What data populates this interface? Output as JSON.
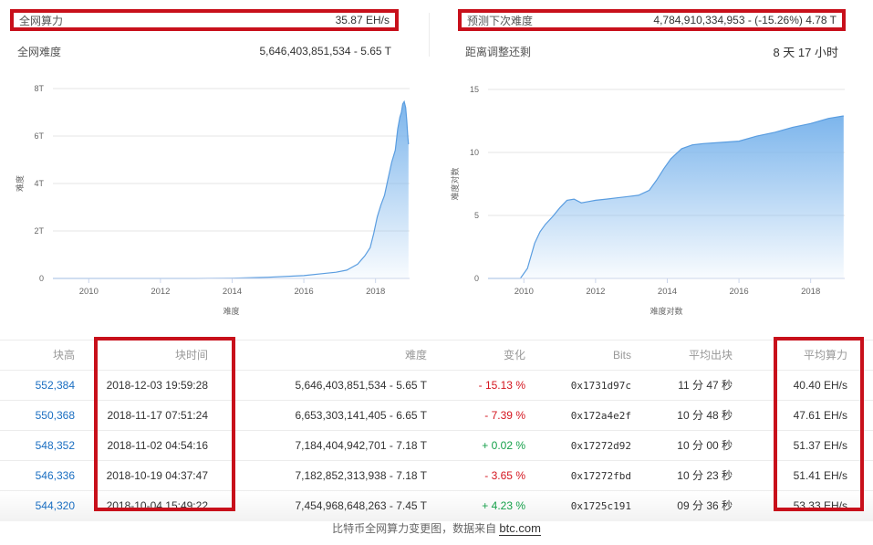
{
  "stats": {
    "hashrate": {
      "label": "全网算力",
      "value": "35.87 EH/s"
    },
    "difficulty": {
      "label": "全网难度",
      "value": "5,646,403,851,534 - 5.65 T"
    },
    "predicted": {
      "label": "预测下次难度",
      "value": "4,784,910,334,953 - (-15.26%) 4.78 T"
    },
    "remaining": {
      "label": "距离调整还剩",
      "value": "8 天 17 小时"
    }
  },
  "chart_data": [
    {
      "type": "area",
      "title": "",
      "xlabel": "难度",
      "ylabel": "难度",
      "xlim": [
        2009,
        2018.95
      ],
      "ylim": [
        0,
        8
      ],
      "x_ticks": [
        2010,
        2012,
        2014,
        2016,
        2018
      ],
      "y_ticks": [
        {
          "value": 0,
          "label": "0"
        },
        {
          "value": 2,
          "label": "2T"
        },
        {
          "value": 4,
          "label": "4T"
        },
        {
          "value": 6,
          "label": "6T"
        },
        {
          "value": 8,
          "label": "8T"
        }
      ],
      "grid": true,
      "color": "#7cb5ec",
      "series": [
        {
          "x": [
            2009.0,
            2013.0,
            2014.0,
            2015.0,
            2016.0,
            2016.5,
            2016.9,
            2017.2,
            2017.5,
            2017.7,
            2017.85,
            2017.95,
            2018.05,
            2018.15,
            2018.25,
            2018.35,
            2018.45,
            2018.55,
            2018.62,
            2018.68,
            2018.72,
            2018.76,
            2018.8,
            2018.84,
            2018.87,
            2018.9,
            2018.92
          ],
          "y": [
            0,
            0,
            0.01,
            0.05,
            0.12,
            0.2,
            0.26,
            0.35,
            0.6,
            0.95,
            1.3,
            1.9,
            2.6,
            3.1,
            3.5,
            4.2,
            4.9,
            5.4,
            6.3,
            6.8,
            7.0,
            7.35,
            7.45,
            7.2,
            6.65,
            6.0,
            5.65
          ]
        }
      ]
    },
    {
      "type": "area",
      "title": "",
      "xlabel": "难度对数",
      "ylabel": "难度对数",
      "xlim": [
        2009,
        2018.95
      ],
      "ylim": [
        0,
        15
      ],
      "x_ticks": [
        2010,
        2012,
        2014,
        2016,
        2018
      ],
      "y_ticks": [
        {
          "value": 0,
          "label": "0"
        },
        {
          "value": 5,
          "label": "5"
        },
        {
          "value": 10,
          "label": "10"
        },
        {
          "value": 15,
          "label": "15"
        }
      ],
      "grid": true,
      "color": "#7cb5ec",
      "series": [
        {
          "x": [
            2009.0,
            2009.9,
            2010.1,
            2010.3,
            2010.45,
            2010.6,
            2010.8,
            2011.0,
            2011.2,
            2011.4,
            2011.6,
            2011.8,
            2012.0,
            2012.3,
            2012.6,
            2012.9,
            2013.2,
            2013.5,
            2013.7,
            2013.9,
            2014.1,
            2014.4,
            2014.7,
            2015.0,
            2015.5,
            2016.0,
            2016.5,
            2017.0,
            2017.5,
            2018.0,
            2018.5,
            2018.92
          ],
          "y": [
            0,
            0,
            0.8,
            2.8,
            3.7,
            4.3,
            4.9,
            5.6,
            6.2,
            6.3,
            6.0,
            6.1,
            6.2,
            6.3,
            6.4,
            6.5,
            6.6,
            7.0,
            7.8,
            8.7,
            9.5,
            10.3,
            10.6,
            10.7,
            10.8,
            10.9,
            11.3,
            11.6,
            12.0,
            12.3,
            12.7,
            12.9
          ]
        }
      ]
    }
  ],
  "table": {
    "headers": {
      "height": "块高",
      "time": "块时间",
      "difficulty": "难度",
      "change": "变化",
      "bits": "Bits",
      "avg": "平均出块",
      "hashrate": "平均算力"
    },
    "rows": [
      {
        "height": "552,384",
        "time": "2018-12-03 19:59:28",
        "difficulty": "5,646,403,851,534 - 5.65 T",
        "change": "- 15.13 %",
        "direction": "down",
        "bits": "0x1731d97c",
        "avg": "11 分 47 秒",
        "hashrate": "40.40 EH/s"
      },
      {
        "height": "550,368",
        "time": "2018-11-17 07:51:24",
        "difficulty": "6,653,303,141,405 - 6.65 T",
        "change": "- 7.39 %",
        "direction": "down",
        "bits": "0x172a4e2f",
        "avg": "10 分 48 秒",
        "hashrate": "47.61 EH/s"
      },
      {
        "height": "548,352",
        "time": "2018-11-02 04:54:16",
        "difficulty": "7,184,404,942,701 - 7.18 T",
        "change": "+ 0.02 %",
        "direction": "up",
        "bits": "0x17272d92",
        "avg": "10 分 00 秒",
        "hashrate": "51.37 EH/s"
      },
      {
        "height": "546,336",
        "time": "2018-10-19 04:37:47",
        "difficulty": "7,182,852,313,938 - 7.18 T",
        "change": "- 3.65 %",
        "direction": "down",
        "bits": "0x17272fbd",
        "avg": "10 分 23 秒",
        "hashrate": "51.41 EH/s"
      },
      {
        "height": "544,320",
        "time": "2018-10-04 15:49:22",
        "difficulty": "7,454,968,648,263 - 7.45 T",
        "change": "+ 4.23 %",
        "direction": "up",
        "bits": "0x1725c191",
        "avg": "09 分 36 秒",
        "hashrate": "53.33 EH/s"
      }
    ]
  },
  "footer": {
    "text": "比特币全网算力变更图，数据来自",
    "link": "btc.com"
  },
  "colors": {
    "highlight_border": "#c8101b",
    "link": "#1a6ec1",
    "negative": "#d4151f",
    "positive": "#16a04a",
    "area_fill": "#7cb5ec"
  }
}
